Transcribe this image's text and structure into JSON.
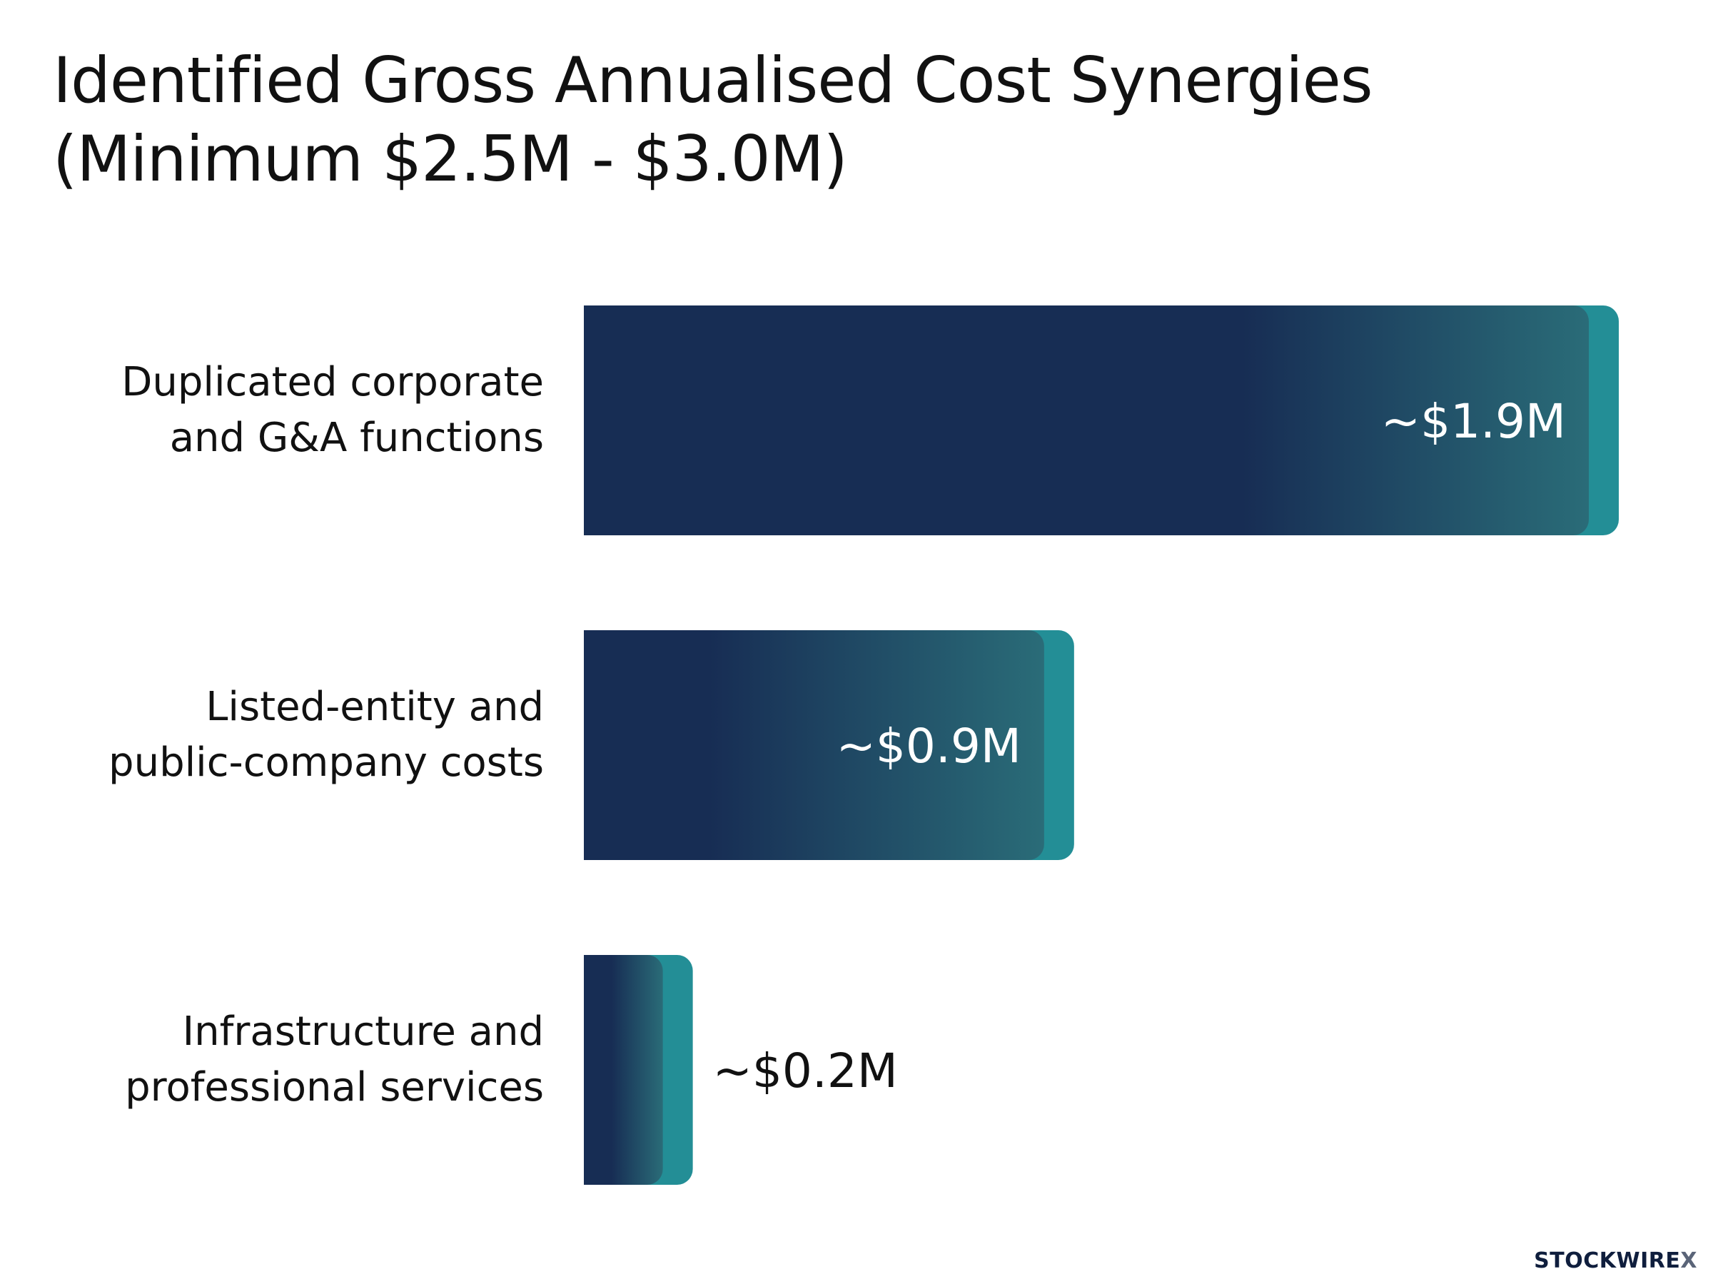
{
  "chart_data": {
    "type": "bar",
    "orientation": "horizontal",
    "title": "Identified Gross Annualised Cost Synergies",
    "subtitle": "(Minimum $2.5M - $3.0M)",
    "categories": [
      [
        "Duplicated corporate",
        "and G&A functions"
      ],
      [
        "Listed-entity and",
        "public-company costs"
      ],
      [
        "Infrastructure and",
        "professional services"
      ]
    ],
    "values": [
      1.9,
      0.9,
      0.2
    ],
    "data_labels": [
      "~$1.9M",
      "~$0.9M",
      "~$0.2M"
    ],
    "xlim": [
      0,
      1.9
    ],
    "grid": false,
    "legend": "none"
  },
  "colors": {
    "bar_dark": "#172d54",
    "bar_teal": "#238e96",
    "label_inside": "#ffffff",
    "label_outside": "#111111"
  },
  "brand": {
    "name": "STOCKWIRE",
    "mark": "X"
  }
}
